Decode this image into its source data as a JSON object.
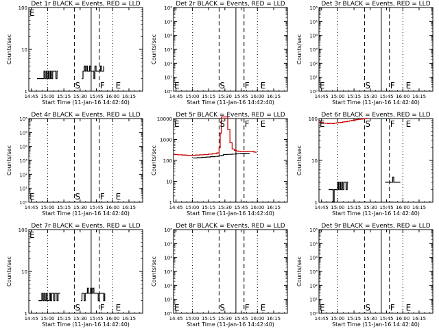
{
  "common": {
    "x_tick_labels": [
      "14:45",
      "15:00",
      "15:15",
      "15:30",
      "15:45",
      "16:00",
      "16:15"
    ],
    "x_axis_label": "Start Time (11-Jan-16 14:42:40)",
    "y_axis_label": "Counts/sec",
    "x_range_minutes": [
      0,
      105
    ],
    "x_tick_minutes": [
      2.33,
      17.33,
      32.33,
      47.33,
      62.33,
      77.33,
      92.33
    ],
    "marker_minutes": {
      "E1": 12,
      "S": 42,
      "F": 65,
      "E2": 79.5
    },
    "dotted_minutes": [
      17.33,
      77.33
    ],
    "solid_minutes": [
      57.5
    ]
  },
  "chart_data": [
    {
      "type": "line",
      "title": "Det 1r BLACK = Events, RED = LLD",
      "y_scale": "log",
      "ylim": [
        1,
        100
      ],
      "tick_labels": [
        "1",
        "10",
        "100"
      ],
      "markers": [
        "E",
        "S",
        "F",
        "E"
      ],
      "series": [
        {
          "color": "#000000",
          "x": [
            7.5,
            8,
            9,
            10,
            11,
            12,
            13,
            14,
            15,
            16,
            17,
            18,
            19,
            20,
            21,
            22,
            23,
            24,
            25,
            26,
            27
          ],
          "y": [
            2,
            2,
            2,
            2,
            2,
            2,
            2,
            3,
            2,
            3,
            2,
            3,
            2,
            3,
            2,
            3,
            3,
            3,
            2,
            3,
            3
          ]
        },
        {
          "color": "#000000",
          "x": [
            49,
            50,
            51,
            52,
            53,
            54,
            55,
            56,
            57,
            58,
            59,
            60,
            61,
            62,
            63,
            64,
            65,
            66,
            67,
            68,
            69
          ],
          "y": [
            2,
            3,
            4,
            3,
            4,
            3,
            3,
            4,
            3,
            3,
            3,
            2,
            4,
            3,
            3,
            3,
            3,
            4,
            3,
            3,
            4
          ]
        }
      ]
    },
    {
      "type": "line",
      "title": "Det 2r BLACK = Events, RED = LLD",
      "y_scale": "log",
      "ylim": [
        1,
        1000000
      ],
      "tick_labels": [
        "10⁰",
        "10¹",
        "10²",
        "10³",
        "10⁴",
        "10⁵",
        "10⁶"
      ],
      "markers": [
        "E",
        "S",
        "F",
        "E"
      ],
      "series": []
    },
    {
      "type": "line",
      "title": "Det 3r BLACK = Events, RED = LLD",
      "y_scale": "log",
      "ylim": [
        1,
        1000000
      ],
      "tick_labels": [
        "10⁰",
        "10¹",
        "10²",
        "10³",
        "10⁴",
        "10⁵",
        "10⁶"
      ],
      "markers": [
        "E",
        "S",
        "F",
        "E"
      ],
      "series": []
    },
    {
      "type": "line",
      "title": "Det 4r BLACK = Events, RED = LLD",
      "y_scale": "log",
      "ylim": [
        1,
        1000000
      ],
      "tick_labels": [
        "10⁰",
        "10¹",
        "10²",
        "10³",
        "10⁴",
        "10⁵",
        "10⁶"
      ],
      "markers": [
        "E",
        "S",
        "F",
        "E"
      ],
      "series": []
    },
    {
      "type": "line",
      "title": "Det 5r BLACK = Events, RED = LLD",
      "y_scale": "log",
      "ylim": [
        1,
        10000
      ],
      "tick_labels": [
        "1",
        "10",
        "100",
        "1000",
        "10000"
      ],
      "markers": [
        "E",
        "S",
        "F",
        "E"
      ],
      "series": [
        {
          "color": "#000000",
          "x": [
            18,
            22,
            26,
            30,
            34,
            38,
            41,
            42,
            44,
            46,
            50,
            54,
            58,
            62,
            66,
            70
          ],
          "y": [
            130,
            135,
            140,
            145,
            150,
            155,
            160,
            165,
            170,
            190,
            195,
            200,
            210,
            215,
            220,
            225
          ]
        },
        {
          "color": "#cc0000",
          "x": [
            0,
            4,
            8,
            12,
            16,
            20,
            24,
            28,
            32,
            36,
            40,
            42,
            43,
            44,
            45,
            48,
            50,
            52,
            54,
            56,
            58,
            60,
            62,
            64,
            66,
            68,
            70,
            72,
            74,
            76
          ],
          "y": [
            190,
            185,
            180,
            175,
            175,
            180,
            185,
            190,
            200,
            210,
            230,
            400,
            2000,
            12000,
            12000,
            12000,
            3000,
            700,
            350,
            300,
            280,
            270,
            265,
            260,
            265,
            270,
            275,
            270,
            250,
            230
          ]
        }
      ]
    },
    {
      "type": "line",
      "title": "Det 6r BLACK = Events, RED = LLD",
      "y_scale": "log",
      "ylim": [
        1,
        100
      ],
      "tick_labels": [
        "1",
        "10",
        "100"
      ],
      "markers": [
        "E",
        "S",
        "F",
        "E"
      ],
      "series": [
        {
          "color": "#cc0000",
          "x": [
            0,
            2,
            4,
            6,
            8,
            10,
            12,
            14,
            16,
            18,
            20,
            22,
            24,
            26,
            28,
            30,
            32,
            34,
            36,
            38,
            40,
            42,
            44,
            46
          ],
          "y": [
            82,
            80,
            78,
            77,
            76,
            77,
            76,
            78,
            79,
            80,
            81,
            83,
            84,
            86,
            88,
            90,
            92,
            94,
            96,
            97,
            98,
            99,
            100,
            100
          ]
        },
        {
          "color": "#000000",
          "x": [
            9,
            10,
            11,
            12,
            13,
            14,
            15,
            16,
            17,
            18,
            19,
            20,
            21,
            22,
            23,
            24,
            25,
            26,
            27
          ],
          "y": [
            2,
            2,
            2,
            2,
            1,
            2,
            2,
            2,
            3,
            2,
            3,
            2,
            3,
            2,
            3,
            3,
            2,
            3,
            3
          ]
        },
        {
          "color": "#000000",
          "x": [
            61,
            62,
            63,
            64,
            65,
            66,
            67,
            68,
            69,
            70,
            71,
            72,
            73,
            74,
            75
          ],
          "y": [
            3,
            3,
            3,
            3,
            3,
            3,
            3,
            4,
            3,
            3,
            3,
            3,
            3,
            3,
            3
          ]
        }
      ]
    },
    {
      "type": "line",
      "title": "Det 7r BLACK = Events, RED = LLD",
      "y_scale": "log",
      "ylim": [
        1,
        100
      ],
      "tick_labels": [
        "1",
        "10",
        "100"
      ],
      "markers": [
        "E",
        "S",
        "F",
        "E"
      ],
      "series": [
        {
          "color": "#000000",
          "x": [
            9,
            10,
            11,
            12,
            13,
            14,
            15,
            16,
            17,
            18,
            19,
            20,
            21,
            22,
            23,
            24,
            25,
            26,
            27,
            28,
            29
          ],
          "y": [
            2,
            2,
            2,
            3,
            2,
            3,
            2,
            3,
            2,
            2,
            3,
            2,
            3,
            3,
            2,
            3,
            3,
            2,
            3,
            3,
            3
          ]
        },
        {
          "color": "#000000",
          "x": [
            48,
            49,
            50,
            51,
            52,
            53,
            54,
            55,
            56,
            57,
            58,
            59,
            60,
            61,
            62,
            63,
            64,
            65,
            66,
            67,
            68,
            69,
            70
          ],
          "y": [
            2,
            3,
            3,
            2,
            3,
            3,
            4,
            3,
            3,
            4,
            3,
            4,
            3,
            3,
            3,
            3,
            2,
            3,
            3,
            3,
            3,
            2,
            3
          ]
        }
      ]
    },
    {
      "type": "line",
      "title": "Det 8r BLACK = Events, RED = LLD",
      "y_scale": "log",
      "ylim": [
        1,
        1000000
      ],
      "tick_labels": [
        "10⁰",
        "10¹",
        "10²",
        "10³",
        "10⁴",
        "10⁵",
        "10⁶"
      ],
      "markers": [
        "E",
        "S",
        "F",
        "E"
      ],
      "series": []
    },
    {
      "type": "line",
      "title": "Det 9r BLACK = Events, RED = LLD",
      "y_scale": "log",
      "ylim": [
        1,
        1000000
      ],
      "tick_labels": [
        "10⁰",
        "10¹",
        "10²",
        "10³",
        "10⁴",
        "10⁵",
        "10⁶"
      ],
      "markers": [
        "E",
        "S",
        "F",
        "E"
      ],
      "series": []
    }
  ]
}
